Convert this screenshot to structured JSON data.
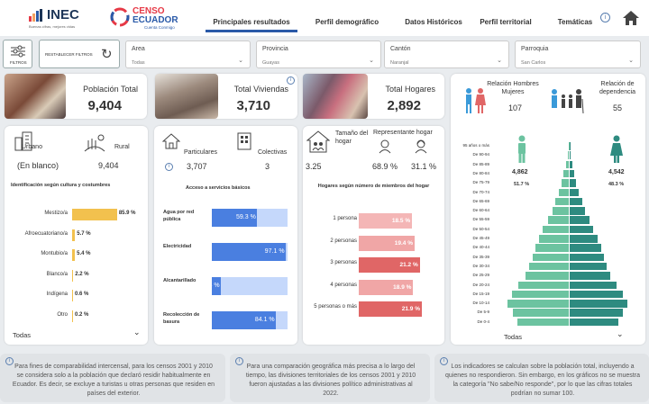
{
  "header": {
    "inec_logo": "INEC",
    "inec_tagline": "Buenas cifras, mejores vidas",
    "censo_logo_line1": "CENSO",
    "censo_logo_line2": "ECUADOR",
    "censo_tagline": "Cuenta Conmigo",
    "tabs": [
      "Principales resultados",
      "Perfil demográfico",
      "Datos Históricos",
      "Perfil territorial",
      "Temáticas"
    ],
    "active_tab": 0
  },
  "filters": {
    "filtros_label": "FILTROS",
    "reset_label": "RESTABLECER FILTROS",
    "area": {
      "label": "Area",
      "value": "Todas"
    },
    "provincia": {
      "label": "Provincia",
      "value": "Guayas"
    },
    "canton": {
      "label": "Cantón",
      "value": "Naranjal"
    },
    "parroquia": {
      "label": "Parroquia",
      "value": "San Carlos"
    }
  },
  "kpis": {
    "poblacion": {
      "label": "Población Total",
      "value": "9,404"
    },
    "viviendas": {
      "label": "Total Viviendas",
      "value": "3,710"
    },
    "hogares": {
      "label": "Total Hogares",
      "value": "2,892"
    }
  },
  "area_card": {
    "urbano_label": "Urbano",
    "rural_label": "Rural",
    "urbano_value": "(En blanco)",
    "rural_value": "9,404",
    "chart_title": "Identificación según cultura y costumbres",
    "footer_select": "Todas"
  },
  "viviendas_card": {
    "particulares_label": "Particulares",
    "colectivas_label": "Colectivas",
    "particulares_value": "3,707",
    "colectivas_value": "3",
    "chart_title": "Acceso a servicios básicos"
  },
  "hogares_card": {
    "tamano_label": "Tamaño del hogar",
    "representante_label": "Representante hogar",
    "tamano_value": "3.25",
    "rep_hombre": "68.9 %",
    "rep_mujer": "31.1 %",
    "chart_title": "Hogares según número de miembros del hogar"
  },
  "pyramid_card": {
    "relacion_label": "Relación Hombres Mujeres",
    "relacion_value": "107",
    "dependencia_label": "Relación de dependencia",
    "dependencia_value": "55",
    "hombres_value": "4,862",
    "hombres_pct": "51.7 %",
    "mujeres_value": "4,542",
    "mujeres_pct": "48.3 %",
    "footer_select": "Todas"
  },
  "footnotes": [
    "Para fines de comparabilidad intercensal, para los censos 2001 y 2010 se considera solo a la población que declaró residir habitualmente en Ecuador. Es decir, se excluye a turistas u otras personas que residen en países del exterior.",
    "Para una comparación geográfica más precisa a lo largo del tiempo, las divisiones territoriales de los censos 2001 y 2010 fueron ajustadas a las divisiones político administrativas al 2022.",
    "Los indicadores se calculan sobre la población total, incluyendo a quienes no respondieron. Sin embargo, en los gráficos no se muestra la categoría \"No sabe/No responde\", por lo que las cifras totales podrían no sumar 100."
  ],
  "colors": {
    "accent": "#2a5aa8",
    "yellow": "#f2c14e",
    "blue": "#4a7fe0",
    "red": "#e06666",
    "teal": "#2e8b80",
    "green": "#6cc3a0"
  },
  "chart_data": [
    {
      "type": "bar",
      "title": "Identificación según cultura y costumbres",
      "categories": [
        "Mestizo/a",
        "Afroecuatoriano/a",
        "Montubio/a",
        "Blanco/a",
        "Indígena",
        "Otro"
      ],
      "values": [
        85.9,
        5.7,
        5.4,
        2.2,
        0.6,
        0.2
      ],
      "labels": [
        "85.9 %",
        "5.7 %",
        "5.4 %",
        "2.2 %",
        "0.6 %",
        "0.2 %"
      ]
    },
    {
      "type": "bar",
      "title": "Acceso a servicios básicos",
      "categories": [
        "Agua por red pública",
        "Electricidad",
        "Alcantarillado",
        "Recolección de basura"
      ],
      "values": [
        59.3,
        97.1,
        11.4,
        84.1
      ],
      "labels": [
        "59.3 %",
        "97.1 %",
        "11.4 %",
        "84.1 %"
      ]
    },
    {
      "type": "bar",
      "title": "Hogares según número de miembros del hogar",
      "categories": [
        "1 persona",
        "2 personas",
        "3 personas",
        "4 personas",
        "5 personas o más"
      ],
      "values": [
        18.5,
        19.4,
        21.2,
        18.9,
        21.9
      ],
      "labels": [
        "18.5 %",
        "19.4 %",
        "21.2 %",
        "18.9 %",
        "21.9 %"
      ]
    },
    {
      "type": "bar",
      "title": "",
      "categories": [
        "95 años o más",
        "De 90-94",
        "De 85-89",
        "De 80-84",
        "De 75-79",
        "De 70-74",
        "De 65-69",
        "De 60-64",
        "De 55-59",
        "De 50-54",
        "De 45-49",
        "De 40-44",
        "De 35-39",
        "De 30-34",
        "De 25-29",
        "De 20-24",
        "De 15-19",
        "De 10-14",
        "De 5-9",
        "De 0-4"
      ],
      "series": [
        {
          "values": [
            0.02,
            0.1,
            0.3,
            0.5,
            0.7,
            1.0,
            1.3,
            1.6,
            2.0,
            2.5,
            2.9,
            3.2,
            3.5,
            3.8,
            4.2,
            4.9,
            5.5,
            5.9,
            5.4,
            5.0
          ]
        },
        {
          "values": [
            0.02,
            0.1,
            0.3,
            0.45,
            0.65,
            0.9,
            1.2,
            1.5,
            1.9,
            2.3,
            2.7,
            3.0,
            3.3,
            3.6,
            3.9,
            4.5,
            5.1,
            5.6,
            5.1,
            4.7
          ]
        }
      ]
    }
  ]
}
